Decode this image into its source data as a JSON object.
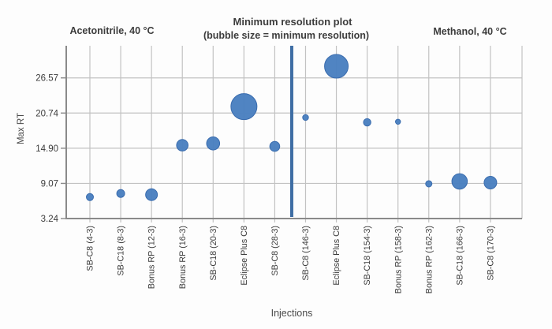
{
  "chart_data": {
    "type": "scatter",
    "subtype": "bubble",
    "title": "Minimum resolution plot",
    "subtitle": "(bubble size = minimum resolution)",
    "xlabel": "Injections",
    "ylabel": "Max RT",
    "yticks": [
      26.57,
      20.74,
      14.9,
      9.07,
      3.24
    ],
    "ytick_labels": [
      "26.57",
      "20.74",
      "14.90",
      "9.07",
      "3.24"
    ],
    "ylim": [
      3.24,
      31.9
    ],
    "grid": true,
    "legend_position": "none",
    "sections": [
      {
        "label": "Acetonitrile, 40 °C",
        "first_point": 0,
        "last_point": 6
      },
      {
        "label": "Methanol, 40 °C",
        "first_point": 7,
        "last_point": 13
      }
    ],
    "divider_between": [
      "SB-C8 (28-3)",
      "SB-C8 (146-3)"
    ],
    "points": [
      {
        "category": "SB-C8 (4-3)",
        "section": "Acetonitrile, 40 °C",
        "max_rt": 6.8,
        "size": 4.5
      },
      {
        "category": "SB-C18 (8-3)",
        "section": "Acetonitrile, 40 °C",
        "max_rt": 7.4,
        "size": 5.0
      },
      {
        "category": "Bonus RP (12-3)",
        "section": "Acetonitrile, 40 °C",
        "max_rt": 7.2,
        "size": 7.5
      },
      {
        "category": "Bonus RP (16-3)",
        "section": "Acetonitrile, 40 °C",
        "max_rt": 15.4,
        "size": 7.3
      },
      {
        "category": "SB-C18 (20-3)",
        "section": "Acetonitrile, 40 °C",
        "max_rt": 15.7,
        "size": 8.3
      },
      {
        "category": "Eclipse Plus C8",
        "section": "Acetonitrile, 40 °C",
        "max_rt": 21.8,
        "size": 16.5
      },
      {
        "category": "SB-C8 (28-3)",
        "section": "Acetonitrile, 40 °C",
        "max_rt": 15.2,
        "size": 6.3
      },
      {
        "category": "SB-C8 (146-3)",
        "section": "Methanol, 40 °C",
        "max_rt": 20.0,
        "size": 3.7
      },
      {
        "category": "Eclipse Plus C8",
        "section": "Methanol, 40 °C",
        "max_rt": 28.5,
        "size": 15.0
      },
      {
        "category": "SB-C18 (154-3)",
        "section": "Methanol, 40 °C",
        "max_rt": 19.2,
        "size": 4.7
      },
      {
        "category": "Bonus RP (158-3)",
        "section": "Methanol, 40 °C",
        "max_rt": 19.3,
        "size": 3.2
      },
      {
        "category": "Bonus RP (162-3)",
        "section": "Methanol, 40 °C",
        "max_rt": 9.0,
        "size": 4.0
      },
      {
        "category": "SB-C18 (166-3)",
        "section": "Methanol, 40 °C",
        "max_rt": 9.4,
        "size": 9.8
      },
      {
        "category": "SB-C8 (170-3)",
        "section": "Methanol, 40 °C",
        "max_rt": 9.2,
        "size": 8.0
      }
    ],
    "colors": {
      "bubble": "#4a80c0",
      "bubble_edge": "#3a6cae",
      "divider": "#3e6da4",
      "gridline": "#c2c2c2",
      "axis": "#8a8a8a",
      "text": "#3c3c3c",
      "background": "#ffffff"
    }
  }
}
